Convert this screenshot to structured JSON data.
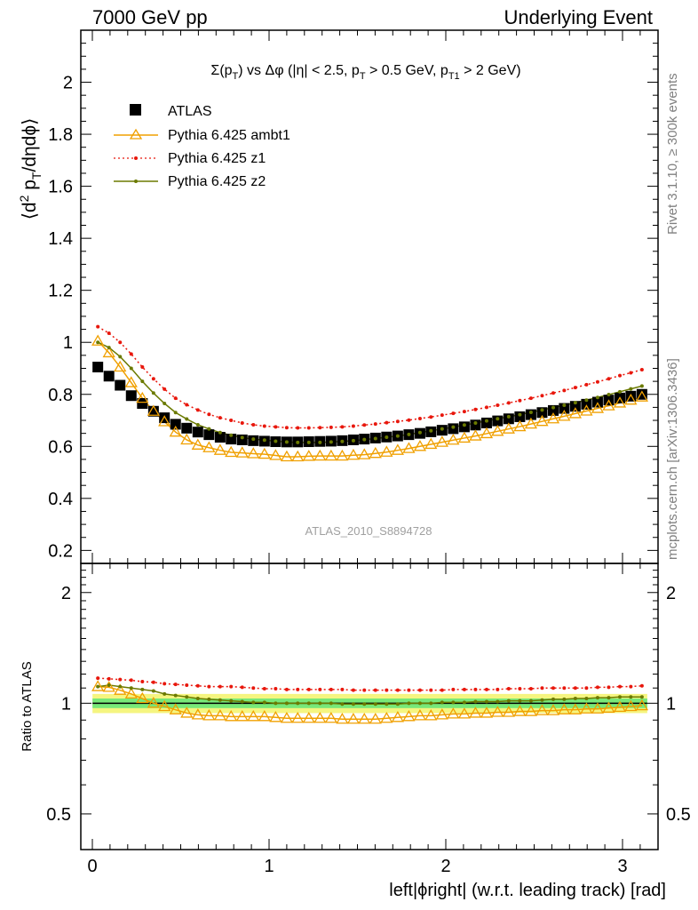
{
  "header": {
    "left": "7000 GeV pp",
    "right": "Underlying Event"
  },
  "side_labels": {
    "rivet": "Rivet 3.1.10, ≥ 300k events",
    "mcplots": "mcplots.cern.ch [arXiv:1306.3436]"
  },
  "plot_title": {
    "sigma": "Σ(p",
    "sub_T": "T",
    "after_sigma": ") vs Δφ (|η| < 2.5, p",
    "sub_T2": "T",
    "mid": " > 0.5 GeV, p",
    "sub_T1": "T1",
    "end": " > 2 GeV)"
  },
  "analysis_id": "ATLAS_2010_S8894728",
  "y_label_main": "⟨d² p_T/dηdφ⟩",
  "y_label_ratio": "Ratio to ATLAS",
  "x_label": "left|ϕright| (w.r.t. leading track) [rad]",
  "legend": [
    {
      "label": "ATLAS"
    },
    {
      "label": "Pythia 6.425 ambt1"
    },
    {
      "label": "Pythia 6.425 z1"
    },
    {
      "label": "Pythia 6.425 z2"
    }
  ],
  "colors": {
    "data": "#000000",
    "ambt1": "#f0a000",
    "z1": "#e8170c",
    "z2": "#6b7a00",
    "band_inner": "#78e878",
    "band_outer": "#f5f580"
  },
  "chart_data": [
    {
      "type": "scatter",
      "panel": "main",
      "ylim": [
        0.15,
        2.2
      ],
      "xlim": [
        -0.065,
        3.2
      ],
      "y_ticks": [
        "0.2",
        "0.4",
        "0.6",
        "0.8",
        "1",
        "1.2",
        "1.4",
        "1.6",
        "1.8",
        "2"
      ],
      "x_ticks": [
        "0",
        "1",
        "2",
        "3"
      ],
      "x": [
        0.031,
        0.094,
        0.157,
        0.22,
        0.283,
        0.346,
        0.408,
        0.471,
        0.534,
        0.597,
        0.66,
        0.723,
        0.785,
        0.848,
        0.911,
        0.974,
        1.037,
        1.1,
        1.162,
        1.225,
        1.288,
        1.351,
        1.414,
        1.477,
        1.539,
        1.602,
        1.665,
        1.728,
        1.791,
        1.854,
        1.916,
        1.979,
        2.042,
        2.105,
        2.168,
        2.231,
        2.293,
        2.356,
        2.419,
        2.482,
        2.545,
        2.608,
        2.67,
        2.733,
        2.796,
        2.859,
        2.922,
        2.985,
        3.047,
        3.11
      ],
      "series": [
        {
          "name": "ATLAS",
          "values": [
            0.905,
            0.87,
            0.835,
            0.795,
            0.765,
            0.735,
            0.71,
            0.685,
            0.67,
            0.655,
            0.645,
            0.635,
            0.628,
            0.625,
            0.622,
            0.62,
            0.618,
            0.617,
            0.617,
            0.618,
            0.619,
            0.62,
            0.622,
            0.625,
            0.628,
            0.632,
            0.636,
            0.64,
            0.645,
            0.65,
            0.656,
            0.662,
            0.668,
            0.675,
            0.682,
            0.69,
            0.698,
            0.706,
            0.714,
            0.722,
            0.73,
            0.738,
            0.746,
            0.754,
            0.762,
            0.77,
            0.778,
            0.786,
            0.793,
            0.8
          ]
        },
        {
          "name": "Pythia 6.425 ambt1",
          "values": [
            1.005,
            0.96,
            0.905,
            0.845,
            0.785,
            0.735,
            0.695,
            0.655,
            0.625,
            0.605,
            0.595,
            0.585,
            0.577,
            0.575,
            0.572,
            0.57,
            0.565,
            0.56,
            0.56,
            0.562,
            0.563,
            0.563,
            0.563,
            0.566,
            0.568,
            0.573,
            0.578,
            0.585,
            0.592,
            0.6,
            0.608,
            0.616,
            0.624,
            0.632,
            0.64,
            0.649,
            0.658,
            0.667,
            0.676,
            0.686,
            0.696,
            0.706,
            0.716,
            0.726,
            0.736,
            0.746,
            0.756,
            0.767,
            0.778,
            0.79
          ]
        },
        {
          "name": "Pythia 6.425 z1",
          "values": [
            1.06,
            1.035,
            1.0,
            0.955,
            0.905,
            0.86,
            0.82,
            0.785,
            0.76,
            0.74,
            0.723,
            0.71,
            0.7,
            0.69,
            0.683,
            0.678,
            0.675,
            0.672,
            0.671,
            0.671,
            0.672,
            0.673,
            0.675,
            0.678,
            0.682,
            0.686,
            0.691,
            0.696,
            0.701,
            0.707,
            0.713,
            0.72,
            0.727,
            0.734,
            0.742,
            0.75,
            0.758,
            0.767,
            0.776,
            0.785,
            0.795,
            0.805,
            0.815,
            0.826,
            0.837,
            0.848,
            0.86,
            0.872,
            0.883,
            0.895
          ]
        },
        {
          "name": "Pythia 6.425 z2",
          "values": [
            1.0,
            0.98,
            0.945,
            0.9,
            0.85,
            0.805,
            0.765,
            0.73,
            0.705,
            0.683,
            0.667,
            0.653,
            0.643,
            0.634,
            0.628,
            0.624,
            0.62,
            0.617,
            0.615,
            0.615,
            0.615,
            0.617,
            0.619,
            0.622,
            0.626,
            0.63,
            0.635,
            0.64,
            0.646,
            0.653,
            0.66,
            0.667,
            0.674,
            0.682,
            0.69,
            0.698,
            0.706,
            0.714,
            0.722,
            0.731,
            0.74,
            0.749,
            0.758,
            0.768,
            0.778,
            0.788,
            0.799,
            0.81,
            0.821,
            0.832
          ]
        }
      ]
    },
    {
      "type": "line",
      "panel": "ratio",
      "ylim": [
        0.4,
        2.4
      ],
      "y_scale": "log",
      "y_ticks": [
        "0.5",
        "1",
        "2"
      ],
      "band": {
        "inner": [
          0.97,
          1.03
        ],
        "outer": [
          0.94,
          1.06
        ]
      },
      "x": [
        0.031,
        0.094,
        0.157,
        0.22,
        0.283,
        0.346,
        0.408,
        0.471,
        0.534,
        0.597,
        0.66,
        0.723,
        0.785,
        0.848,
        0.911,
        0.974,
        1.037,
        1.1,
        1.162,
        1.225,
        1.288,
        1.351,
        1.414,
        1.477,
        1.539,
        1.602,
        1.665,
        1.728,
        1.791,
        1.854,
        1.916,
        1.979,
        2.042,
        2.105,
        2.168,
        2.231,
        2.293,
        2.356,
        2.419,
        2.482,
        2.545,
        2.608,
        2.67,
        2.733,
        2.796,
        2.859,
        2.922,
        2.985,
        3.047,
        3.11
      ],
      "series": [
        {
          "name": "Pythia 6.425 ambt1",
          "values": [
            1.11,
            1.105,
            1.085,
            1.06,
            1.03,
            1.0,
            0.98,
            0.96,
            0.94,
            0.93,
            0.925,
            0.925,
            0.92,
            0.92,
            0.92,
            0.92,
            0.915,
            0.91,
            0.91,
            0.91,
            0.91,
            0.91,
            0.905,
            0.905,
            0.905,
            0.905,
            0.91,
            0.915,
            0.92,
            0.925,
            0.925,
            0.93,
            0.935,
            0.935,
            0.94,
            0.94,
            0.945,
            0.945,
            0.95,
            0.95,
            0.955,
            0.955,
            0.96,
            0.96,
            0.965,
            0.965,
            0.97,
            0.975,
            0.98,
            0.985
          ]
        },
        {
          "name": "Pythia 6.425 z1",
          "values": [
            1.17,
            1.165,
            1.16,
            1.155,
            1.145,
            1.14,
            1.13,
            1.125,
            1.12,
            1.115,
            1.11,
            1.11,
            1.11,
            1.105,
            1.1,
            1.095,
            1.095,
            1.09,
            1.09,
            1.09,
            1.09,
            1.09,
            1.09,
            1.085,
            1.085,
            1.085,
            1.085,
            1.085,
            1.085,
            1.085,
            1.085,
            1.085,
            1.09,
            1.09,
            1.09,
            1.09,
            1.09,
            1.095,
            1.095,
            1.095,
            1.1,
            1.1,
            1.1,
            1.1,
            1.1,
            1.105,
            1.105,
            1.11,
            1.11,
            1.115
          ]
        },
        {
          "name": "Pythia 6.425 z2",
          "values": [
            1.11,
            1.12,
            1.11,
            1.1,
            1.09,
            1.08,
            1.06,
            1.05,
            1.04,
            1.03,
            1.025,
            1.02,
            1.015,
            1.01,
            1.005,
            1.005,
            1.0,
            1.0,
            1.0,
            1.0,
            1.0,
            1.0,
            0.995,
            0.995,
            0.995,
            0.995,
            0.995,
            0.995,
            1.0,
            1.0,
            1.0,
            1.005,
            1.005,
            1.005,
            1.01,
            1.01,
            1.01,
            1.015,
            1.015,
            1.015,
            1.02,
            1.025,
            1.025,
            1.03,
            1.03,
            1.035,
            1.035,
            1.04,
            1.04,
            1.04
          ]
        }
      ]
    }
  ]
}
